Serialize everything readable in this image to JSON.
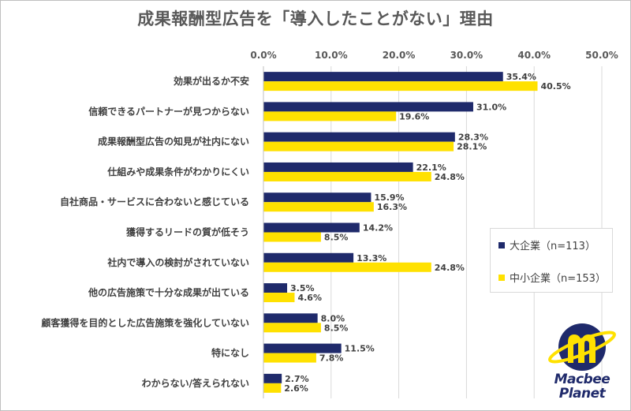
{
  "chart_data": {
    "type": "bar",
    "orientation": "horizontal",
    "title": "成果報酬型広告を「導入したことがない」理由",
    "categories": [
      "効果が出るか不安",
      "信頼できるパートナーが見つからない",
      "成果報酬型広告の知見が社内にない",
      "仕組みや成果条件がわかりにくい",
      "自社商品・サービスに合わないと感じている",
      "獲得するリードの質が低そう",
      "社内で導入の検討がされていない",
      "他の広告施策で十分な成果が出ている",
      "顧客獲得を目的とした広告施策を強化していない",
      "特になし",
      "わからない/答えられない"
    ],
    "series": [
      {
        "name": "大企業（n=113）",
        "color": "#1f2a6b",
        "values": [
          35.4,
          31.0,
          28.3,
          22.1,
          15.9,
          14.2,
          13.3,
          3.5,
          8.0,
          11.5,
          2.7
        ],
        "labels": [
          "35.4%",
          "31.0%",
          "28.3%",
          "22.1%",
          "15.9%",
          "14.2%",
          "13.3%",
          "3.5%",
          "8.0%",
          "11.5%",
          "2.7%"
        ]
      },
      {
        "name": "中小企業（n=153）",
        "color": "#ffe100",
        "values": [
          40.5,
          19.6,
          28.1,
          24.8,
          16.3,
          8.5,
          24.8,
          4.6,
          8.5,
          7.8,
          2.6
        ],
        "labels": [
          "40.5%",
          "19.6%",
          "28.1%",
          "24.8%",
          "16.3%",
          "8.5%",
          "24.8%",
          "4.6%",
          "8.5%",
          "7.8%",
          "2.6%"
        ]
      }
    ],
    "xlim": [
      0,
      50
    ],
    "xticks": [
      0,
      10,
      20,
      30,
      40,
      50
    ],
    "xtick_labels": [
      "0.0%",
      "10.0%",
      "20.0%",
      "30.0%",
      "40.0%",
      "50.0%"
    ],
    "grid": true,
    "legend_position": "right"
  },
  "logo": {
    "line1": "Macbee",
    "line2": "Planet",
    "colors": {
      "navy": "#1f2a6b",
      "yellow": "#ffe100"
    }
  }
}
